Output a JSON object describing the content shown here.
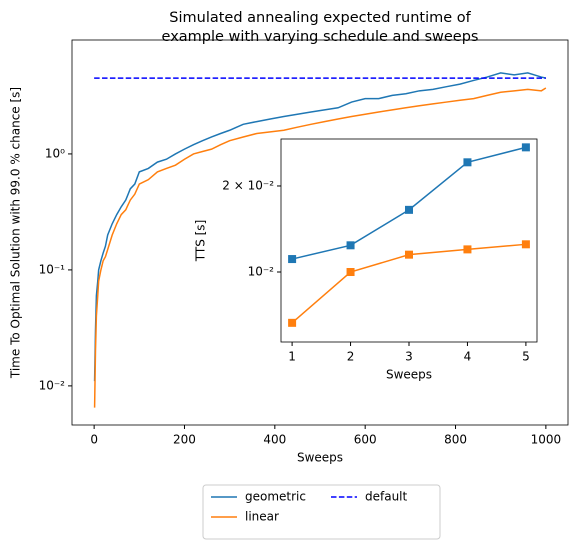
{
  "chart_data": [
    {
      "type": "line",
      "title_lines": [
        "Simulated annealing expected runtime of",
        "example with varying schedule and sweeps"
      ],
      "xlabel": "Sweeps",
      "ylabel": "Time To Optimal Solution with 99.0 % chance [s]",
      "log_y": true,
      "xlim": [
        -49,
        1049
      ],
      "ylim": [
        0.0046,
        9.6
      ],
      "xticks": [
        0,
        200,
        400,
        600,
        800,
        1000
      ],
      "yticks": [
        {
          "value": 0.01,
          "label": "10⁻²"
        },
        {
          "value": 0.1,
          "label": "10⁻¹"
        },
        {
          "value": 1,
          "label": "10⁰"
        }
      ],
      "legend": "below",
      "legend_columns": 2,
      "x": [
        1,
        3,
        5,
        8,
        10,
        15,
        20,
        25,
        30,
        40,
        50,
        60,
        70,
        80,
        90,
        100,
        120,
        140,
        160,
        180,
        200,
        220,
        240,
        260,
        280,
        300,
        330,
        360,
        390,
        420,
        450,
        480,
        510,
        540,
        570,
        600,
        630,
        660,
        690,
        720,
        750,
        780,
        810,
        840,
        870,
        900,
        930,
        960,
        990,
        1000
      ],
      "series": [
        {
          "name": "geometric",
          "color": "#1f77b4",
          "style": "solid",
          "values": [
            0.011,
            0.03,
            0.06,
            0.08,
            0.1,
            0.12,
            0.14,
            0.16,
            0.2,
            0.25,
            0.3,
            0.35,
            0.4,
            0.5,
            0.55,
            0.7,
            0.75,
            0.85,
            0.9,
            1.0,
            1.1,
            1.2,
            1.3,
            1.4,
            1.5,
            1.6,
            1.8,
            1.9,
            2.0,
            2.1,
            2.2,
            2.3,
            2.4,
            2.5,
            2.8,
            3.0,
            3.0,
            3.2,
            3.3,
            3.5,
            3.6,
            3.8,
            4.0,
            4.3,
            4.6,
            5.0,
            4.8,
            5.0,
            4.6,
            4.5
          ]
        },
        {
          "name": "linear",
          "color": "#ff7f0e",
          "style": "solid",
          "values": [
            0.0065,
            0.02,
            0.04,
            0.06,
            0.08,
            0.1,
            0.12,
            0.13,
            0.15,
            0.2,
            0.25,
            0.3,
            0.33,
            0.4,
            0.45,
            0.55,
            0.6,
            0.7,
            0.75,
            0.8,
            0.9,
            1.0,
            1.05,
            1.1,
            1.2,
            1.3,
            1.4,
            1.5,
            1.55,
            1.6,
            1.7,
            1.8,
            1.9,
            2.0,
            2.1,
            2.2,
            2.3,
            2.4,
            2.5,
            2.6,
            2.7,
            2.8,
            2.9,
            3.0,
            3.2,
            3.4,
            3.5,
            3.6,
            3.5,
            3.7
          ]
        },
        {
          "name": "default",
          "color": "#0000ff",
          "style": "dashed",
          "x": [
            0,
            1000
          ],
          "values": [
            4.5,
            4.5
          ]
        }
      ]
    },
    {
      "type": "line",
      "xlabel": "Sweeps",
      "ylabel": "TTS [s]",
      "log_y": true,
      "marker": "square",
      "xlim": [
        0.81,
        5.19
      ],
      "ylim": [
        0.00569,
        0.0292
      ],
      "xticks": [
        1,
        2,
        3,
        4,
        5
      ],
      "yticks": [
        {
          "value": 0.01,
          "label": "10⁻²"
        },
        {
          "value": 0.02,
          "label": "2 × 10⁻²"
        }
      ],
      "x": [
        1,
        2,
        3,
        4,
        5
      ],
      "series": [
        {
          "name": "geometric",
          "color": "#1f77b4",
          "values": [
            0.0111,
            0.0124,
            0.0165,
            0.0242,
            0.0273
          ]
        },
        {
          "name": "linear",
          "color": "#ff7f0e",
          "values": [
            0.00664,
            0.01,
            0.0115,
            0.012,
            0.0125
          ]
        }
      ]
    }
  ]
}
